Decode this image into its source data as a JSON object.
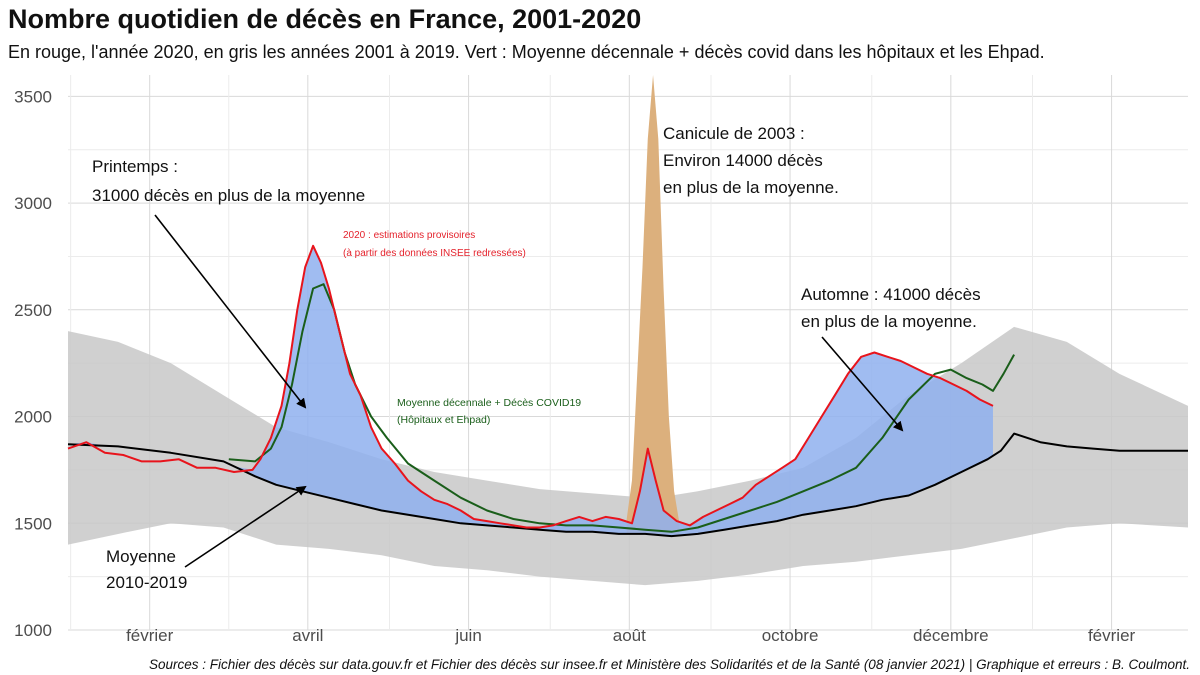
{
  "title": "Nombre quotidien de décès en France, 2001-2020",
  "subtitle": "En rouge, l'année 2020, en gris les années 2001 à 2019. Vert : Moyenne décennale + décès covid dans les hôpitaux et les Ehpad.",
  "caption": "Sources : Fichier des décès sur data.gouv.fr et Fichier des décès sur insee.fr et Ministère des Solidarités et de la Santé (08 janvier 2021) | Graphique et erreurs : B. Coulmont.",
  "colors": {
    "year_2020": "#e8141c",
    "covid_average": "#1a5e1a",
    "average_2010_2019": "#000000",
    "past_years": "#c8c8c8",
    "excess_fill": "#8fb0ee",
    "heatwave_fill": "#dcb07d"
  },
  "annotations": {
    "spring": [
      "Printemps :",
      "31000 décès en plus de la moyenne"
    ],
    "heatwave": [
      "Canicule de 2003 :",
      "Environ 14000 décès",
      "en plus de la moyenne."
    ],
    "autumn": [
      "Automne : 41000 décès",
      "en plus de la moyenne."
    ],
    "average": [
      "Moyenne",
      "2010-2019"
    ],
    "provisional": [
      "2020 : estimations provisoires",
      "(à partir des données INSEE redressées)"
    ],
    "covid_line": [
      "Moyenne décennale + Décès COVID19",
      "(Hôpitaux et Ehpad)"
    ]
  },
  "chart_data": {
    "type": "line",
    "title": "Nombre quotidien de décès en France, 2001-2020",
    "xlabel": "",
    "ylabel": "",
    "ylim": [
      1000,
      3600
    ],
    "y_ticks": [
      1000,
      1500,
      2000,
      2500,
      3000,
      3500
    ],
    "x_ticks": [
      {
        "label": "février",
        "day": 32
      },
      {
        "label": "avril",
        "day": 92
      },
      {
        "label": "juin",
        "day": 153
      },
      {
        "label": "août",
        "day": 214
      },
      {
        "label": "octobre",
        "day": 275
      },
      {
        "label": "décembre",
        "day": 336
      },
      {
        "label": "février",
        "day": 397
      }
    ],
    "x_range_days": [
      1,
      426
    ],
    "grid": true,
    "series": [
      {
        "name": "2020",
        "x": [
          1,
          8,
          15,
          22,
          29,
          36,
          43,
          50,
          57,
          64,
          71,
          74,
          78,
          82,
          85,
          88,
          91,
          94,
          97,
          100,
          104,
          108,
          112,
          116,
          120,
          125,
          130,
          135,
          140,
          145,
          150,
          155,
          160,
          165,
          170,
          175,
          180,
          185,
          190,
          195,
          200,
          205,
          210,
          215,
          218,
          221,
          224,
          227,
          232,
          237,
          242,
          247,
          252,
          257,
          262,
          267,
          272,
          277,
          282,
          287,
          292,
          297,
          302,
          307,
          312,
          317,
          322,
          327,
          332,
          337,
          342,
          347,
          352
        ],
        "y": [
          1850,
          1880,
          1830,
          1820,
          1790,
          1790,
          1800,
          1760,
          1760,
          1740,
          1750,
          1800,
          1900,
          2050,
          2250,
          2500,
          2700,
          2800,
          2720,
          2600,
          2400,
          2200,
          2100,
          1950,
          1850,
          1780,
          1700,
          1650,
          1610,
          1590,
          1560,
          1520,
          1510,
          1500,
          1490,
          1480,
          1480,
          1490,
          1510,
          1530,
          1510,
          1530,
          1520,
          1500,
          1650,
          1850,
          1700,
          1560,
          1510,
          1490,
          1530,
          1560,
          1590,
          1620,
          1680,
          1720,
          1760,
          1800,
          1900,
          2000,
          2100,
          2200,
          2280,
          2300,
          2280,
          2260,
          2230,
          2200,
          2180,
          2150,
          2120,
          2080,
          2050
        ]
      },
      {
        "name": "Moyenne décennale + Décès COVID19 (Hôpitaux et Ehpad)",
        "x": [
          62,
          72,
          78,
          82,
          86,
          90,
          94,
          98,
          102,
          106,
          110,
          116,
          122,
          130,
          140,
          150,
          160,
          170,
          180,
          190,
          200,
          210,
          220,
          230,
          240,
          250,
          260,
          270,
          280,
          290,
          300,
          310,
          320,
          330,
          336,
          342,
          348,
          352,
          356,
          360
        ],
        "y": [
          1800,
          1790,
          1850,
          1950,
          2150,
          2400,
          2600,
          2620,
          2500,
          2300,
          2150,
          2000,
          1900,
          1780,
          1700,
          1620,
          1560,
          1520,
          1500,
          1490,
          1490,
          1480,
          1470,
          1460,
          1480,
          1520,
          1560,
          1600,
          1650,
          1700,
          1760,
          1900,
          2080,
          2200,
          2220,
          2180,
          2150,
          2120,
          2200,
          2290
        ]
      },
      {
        "name": "Moyenne 2010-2019",
        "x": [
          1,
          20,
          40,
          60,
          72,
          80,
          90,
          100,
          110,
          120,
          130,
          140,
          150,
          160,
          170,
          180,
          190,
          200,
          210,
          220,
          230,
          240,
          250,
          260,
          270,
          280,
          290,
          300,
          310,
          320,
          330,
          340,
          350,
          355,
          360,
          370,
          380,
          390,
          400,
          410,
          426
        ],
        "y": [
          1870,
          1860,
          1830,
          1790,
          1720,
          1680,
          1650,
          1620,
          1590,
          1560,
          1540,
          1520,
          1500,
          1490,
          1480,
          1470,
          1460,
          1460,
          1450,
          1450,
          1440,
          1450,
          1470,
          1490,
          1510,
          1540,
          1560,
          1580,
          1610,
          1630,
          1680,
          1740,
          1800,
          1840,
          1920,
          1880,
          1860,
          1850,
          1840,
          1840,
          1840
        ]
      },
      {
        "name": "2001-2019",
        "band_x": [
          1,
          20,
          40,
          60,
          80,
          100,
          120,
          140,
          160,
          180,
          200,
          210,
          220,
          230,
          240,
          260,
          280,
          300,
          320,
          340,
          360,
          380,
          400,
          426
        ],
        "band_low": [
          1400,
          1450,
          1500,
          1480,
          1400,
          1380,
          1350,
          1300,
          1280,
          1250,
          1230,
          1220,
          1210,
          1220,
          1230,
          1260,
          1300,
          1320,
          1350,
          1380,
          1430,
          1480,
          1500,
          1480
        ],
        "band_high": [
          2400,
          2350,
          2250,
          2100,
          1950,
          1880,
          1800,
          1740,
          1700,
          1660,
          1640,
          1630,
          1620,
          1630,
          1650,
          1700,
          1760,
          1900,
          2100,
          2250,
          2420,
          2350,
          2200,
          2050
        ]
      },
      {
        "name": "Canicule de 2003",
        "x": [
          213,
          215,
          217,
          219,
          221,
          223,
          225,
          227,
          229,
          231,
          233
        ],
        "y": [
          1520,
          1700,
          2200,
          2700,
          3300,
          3600,
          3300,
          2600,
          2000,
          1650,
          1500
        ]
      }
    ]
  }
}
